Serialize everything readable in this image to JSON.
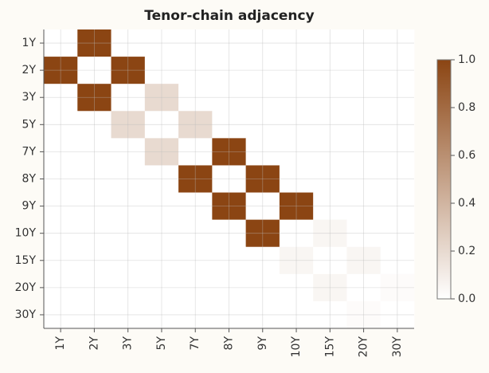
{
  "chart_data": {
    "type": "heatmap",
    "title": "Tenor-chain adjacency",
    "x_categories": [
      "1Y",
      "2Y",
      "3Y",
      "5Y",
      "7Y",
      "8Y",
      "9Y",
      "10Y",
      "15Y",
      "20Y",
      "30Y"
    ],
    "y_categories": [
      "1Y",
      "2Y",
      "3Y",
      "5Y",
      "7Y",
      "8Y",
      "9Y",
      "10Y",
      "15Y",
      "20Y",
      "30Y"
    ],
    "values": [
      [
        0,
        1,
        0,
        0,
        0,
        0,
        0,
        0,
        0,
        0,
        0
      ],
      [
        1,
        0,
        1,
        0,
        0,
        0,
        0,
        0,
        0,
        0,
        0
      ],
      [
        0,
        1,
        0,
        0.2,
        0,
        0,
        0,
        0,
        0,
        0,
        0
      ],
      [
        0,
        0,
        0.2,
        0,
        0.2,
        0,
        0,
        0,
        0,
        0,
        0
      ],
      [
        0,
        0,
        0,
        0.2,
        0,
        1,
        0,
        0,
        0,
        0,
        0
      ],
      [
        0,
        0,
        0,
        0,
        1,
        0,
        1,
        0,
        0,
        0,
        0
      ],
      [
        0,
        0,
        0,
        0,
        0,
        1,
        0,
        1,
        0,
        0,
        0
      ],
      [
        0,
        0,
        0,
        0,
        0,
        0,
        1,
        0,
        0.05,
        0,
        0
      ],
      [
        0,
        0,
        0,
        0,
        0,
        0,
        0,
        0.05,
        0,
        0.05,
        0
      ],
      [
        0,
        0,
        0,
        0,
        0,
        0,
        0,
        0,
        0.05,
        0,
        0.02
      ],
      [
        0,
        0,
        0,
        0,
        0,
        0,
        0,
        0,
        0,
        0.02,
        0
      ]
    ],
    "cmap": [
      "#ffffff",
      "#8b4513"
    ],
    "clim": [
      0,
      1
    ],
    "cticks": [
      {
        "value": 0,
        "label": "0.0"
      },
      {
        "value": 0.2,
        "label": "0.2"
      },
      {
        "value": 0.4,
        "label": "0.4"
      },
      {
        "value": 0.6,
        "label": "0.6"
      },
      {
        "value": 0.8,
        "label": "0.8"
      },
      {
        "value": 1,
        "label": "1.0"
      }
    ],
    "grid": true
  }
}
